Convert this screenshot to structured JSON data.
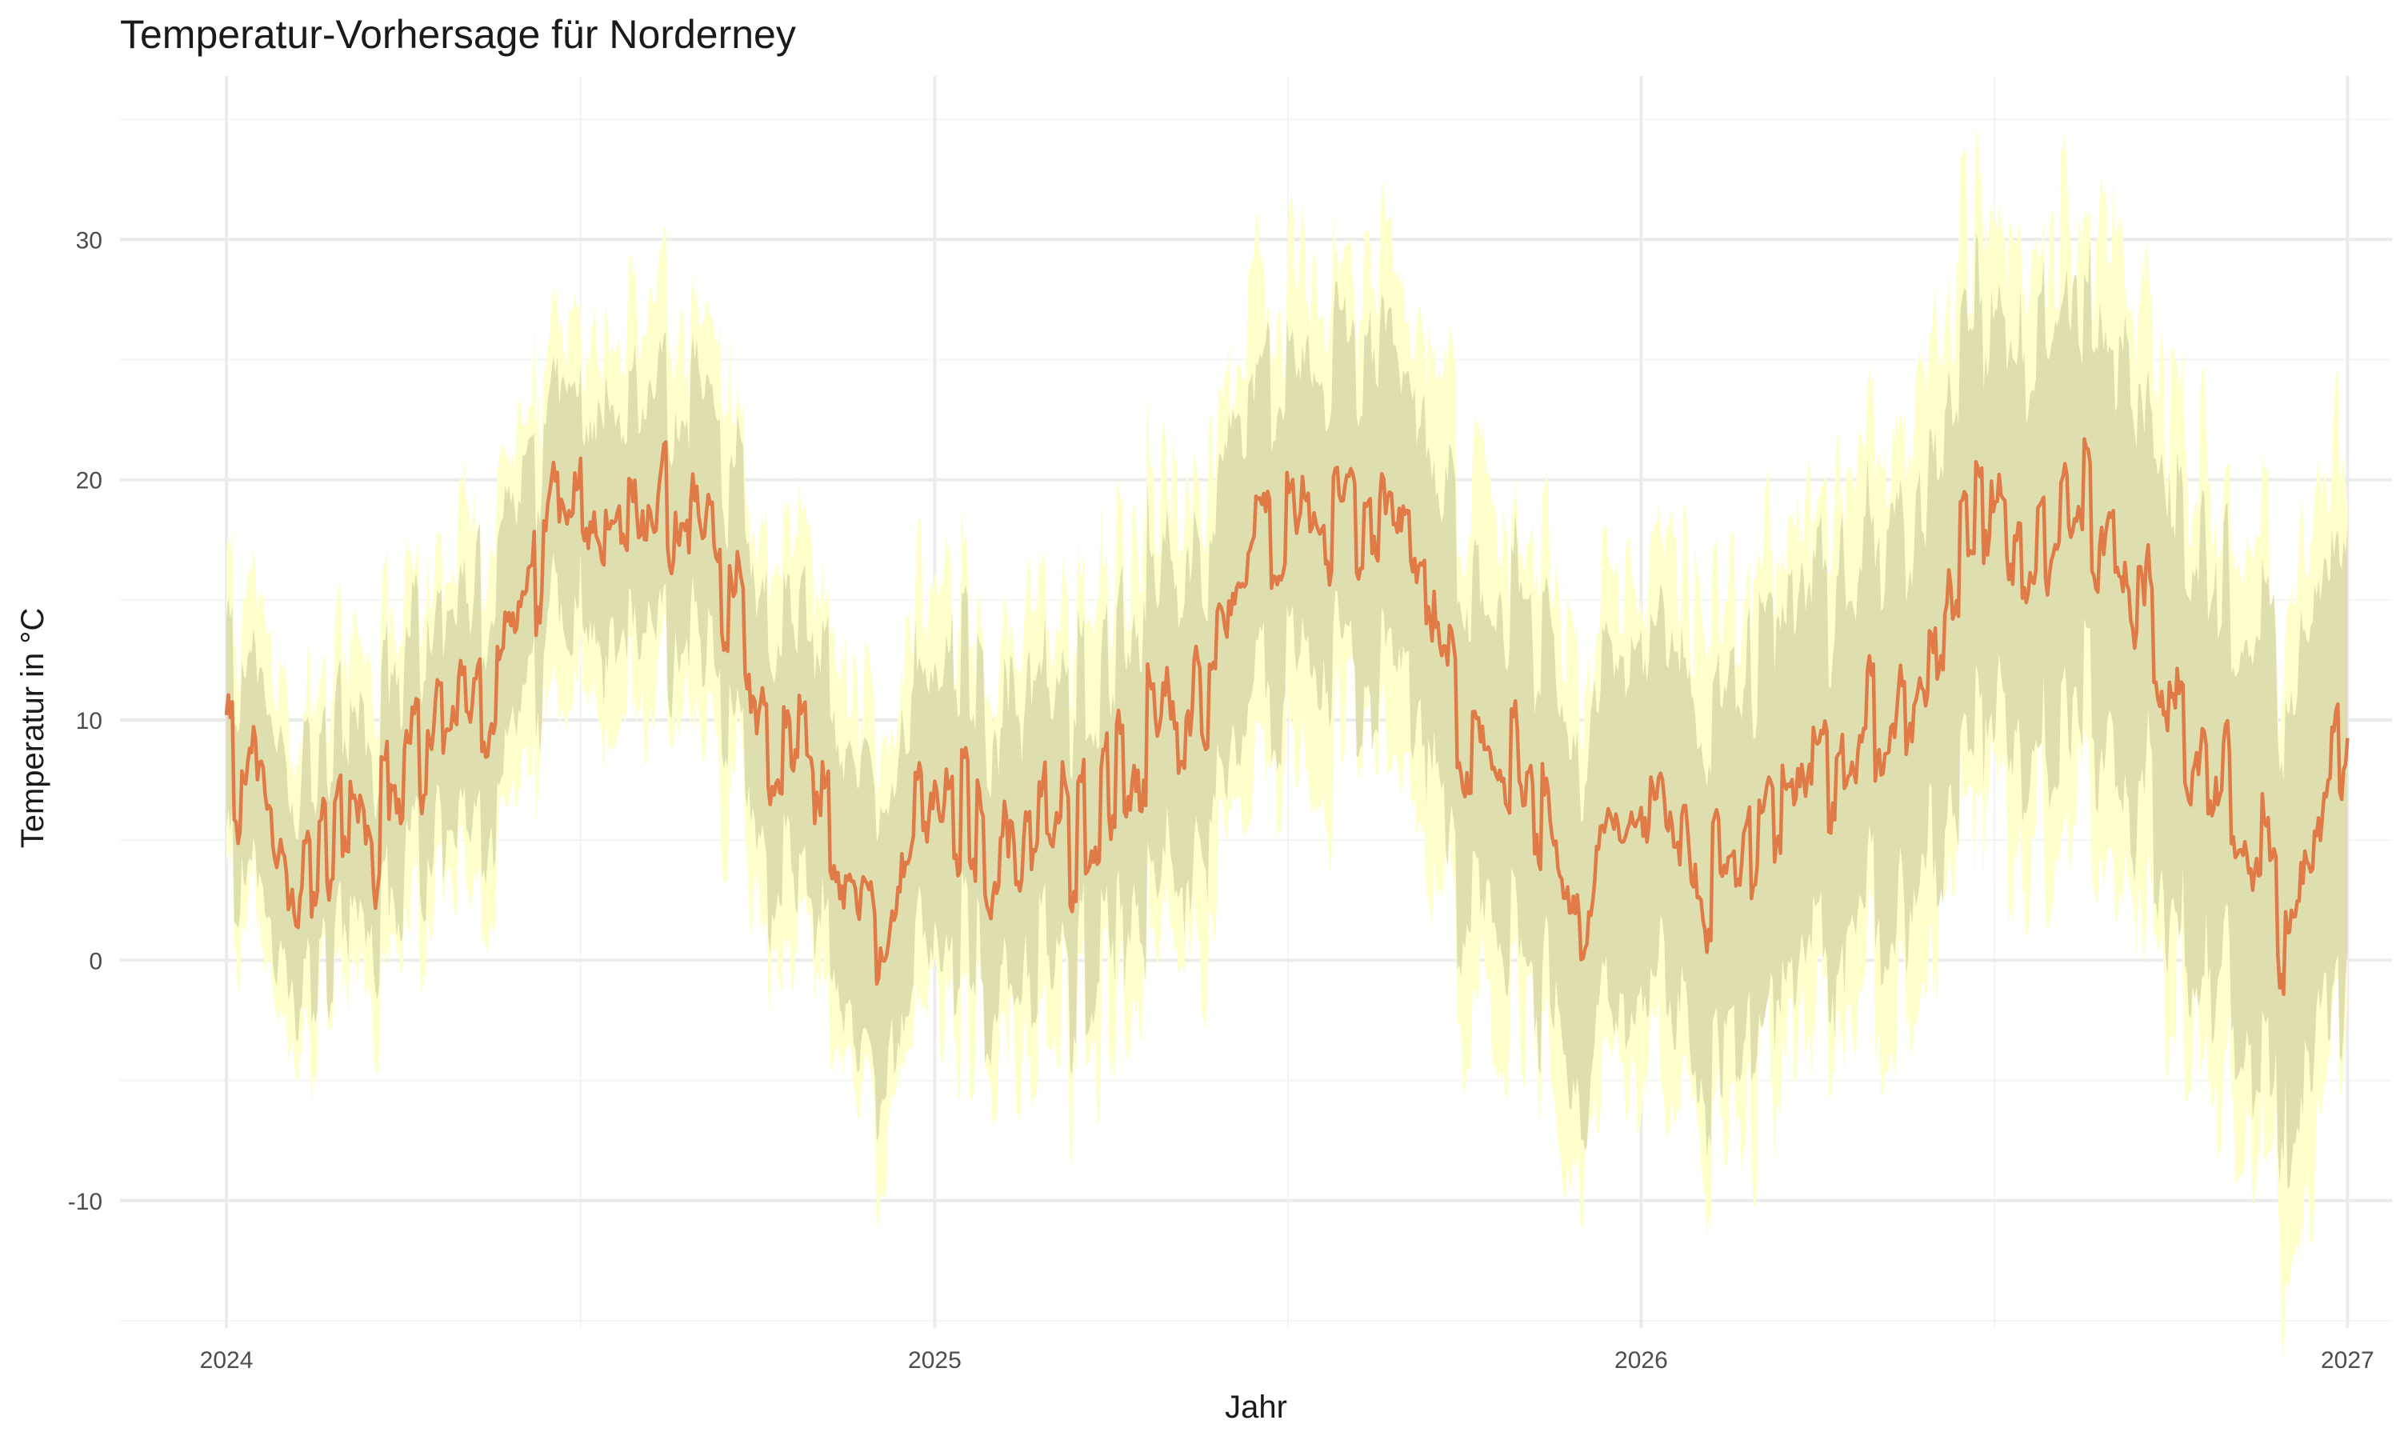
{
  "chart_data": {
    "type": "line",
    "title": "Temperatur-Vorhersage für Norderney",
    "xlabel": "Jahr",
    "ylabel": "Temperatur in °C",
    "x_ticks": [
      "2024",
      "2025",
      "2026",
      "2027"
    ],
    "y_ticks": [
      "-10",
      "0",
      "10",
      "20",
      "30"
    ],
    "xlim": [
      "2023-11-07",
      "2027-01-24"
    ],
    "ylim": [
      -15.3,
      36.8
    ],
    "x_range": [
      "2024-01-01",
      "2027-01-01"
    ],
    "grid": true,
    "legend": "none",
    "colors": {
      "line": "#e07a46",
      "band_outer": "#ffffcc",
      "band_inner": "#d8d8a8",
      "grid_major": "#ebebeb",
      "grid_minor": "#f4f4f4"
    },
    "series": [
      {
        "kind": "line",
        "description": "daily forecast mean, anchor values (°C) at roughly half-monthly intervals",
        "anchors": [
          [
            "2024-01-01",
            8.2
          ],
          [
            "2024-01-15",
            6.5
          ],
          [
            "2024-02-01",
            2.5
          ],
          [
            "2024-02-15",
            4.5
          ],
          [
            "2024-03-01",
            6.0
          ],
          [
            "2024-03-15",
            5.0
          ],
          [
            "2024-04-01",
            7.5
          ],
          [
            "2024-04-15",
            8.5
          ],
          [
            "2024-05-01",
            10.0
          ],
          [
            "2024-05-15",
            11.5
          ],
          [
            "2024-06-01",
            12.5
          ],
          [
            "2024-06-15",
            17.5
          ],
          [
            "2024-07-01",
            18.5
          ],
          [
            "2024-07-15",
            17.0
          ],
          [
            "2024-08-01",
            18.0
          ],
          [
            "2024-08-15",
            19.5
          ],
          [
            "2024-09-01",
            17.0
          ],
          [
            "2024-09-15",
            16.0
          ],
          [
            "2024-10-01",
            10.0
          ],
          [
            "2024-10-15",
            9.0
          ],
          [
            "2024-11-01",
            8.0
          ],
          [
            "2024-11-15",
            5.0
          ],
          [
            "2024-12-01",
            0.5
          ],
          [
            "2024-12-15",
            6.0
          ],
          [
            "2025-01-01",
            8.0
          ],
          [
            "2025-01-15",
            6.5
          ],
          [
            "2025-02-01",
            2.5
          ],
          [
            "2025-02-15",
            4.5
          ],
          [
            "2025-03-01",
            6.0
          ],
          [
            "2025-03-15",
            5.0
          ],
          [
            "2025-04-01",
            7.5
          ],
          [
            "2025-04-15",
            8.5
          ],
          [
            "2025-05-01",
            10.0
          ],
          [
            "2025-05-15",
            11.5
          ],
          [
            "2025-06-01",
            12.5
          ],
          [
            "2025-06-15",
            17.5
          ],
          [
            "2025-07-01",
            18.5
          ],
          [
            "2025-07-15",
            17.0
          ],
          [
            "2025-08-01",
            18.0
          ],
          [
            "2025-08-15",
            19.5
          ],
          [
            "2025-09-01",
            17.0
          ],
          [
            "2025-09-15",
            16.0
          ],
          [
            "2025-10-01",
            10.0
          ],
          [
            "2025-10-15",
            9.0
          ],
          [
            "2025-11-01",
            8.0
          ],
          [
            "2025-11-15",
            5.0
          ],
          [
            "2025-12-01",
            0.5
          ],
          [
            "2025-12-15",
            6.0
          ],
          [
            "2026-01-01",
            8.0
          ],
          [
            "2026-01-15",
            6.5
          ],
          [
            "2026-02-01",
            2.5
          ],
          [
            "2026-02-15",
            4.5
          ],
          [
            "2026-03-01",
            6.0
          ],
          [
            "2026-03-15",
            5.0
          ],
          [
            "2026-04-01",
            7.5
          ],
          [
            "2026-04-15",
            8.5
          ],
          [
            "2026-05-01",
            10.0
          ],
          [
            "2026-05-15",
            11.5
          ],
          [
            "2026-06-01",
            12.5
          ],
          [
            "2026-06-15",
            17.5
          ],
          [
            "2026-07-01",
            18.5
          ],
          [
            "2026-07-15",
            17.0
          ],
          [
            "2026-08-01",
            18.0
          ],
          [
            "2026-08-15",
            19.5
          ],
          [
            "2026-09-01",
            17.0
          ],
          [
            "2026-09-15",
            16.0
          ],
          [
            "2026-10-01",
            10.0
          ],
          [
            "2026-10-15",
            9.0
          ],
          [
            "2026-11-01",
            8.0
          ],
          [
            "2026-11-15",
            5.0
          ],
          [
            "2026-12-01",
            0.5
          ],
          [
            "2026-12-15",
            6.0
          ],
          [
            "2027-01-01",
            8.2
          ]
        ]
      },
      {
        "kind": "band",
        "description": "inner (darker) uncertainty band, half-width in °C growing over time",
        "half_width_start": 4.0,
        "half_width_end": 9.0
      },
      {
        "kind": "band",
        "description": "outer (light yellow) uncertainty band, half-width in °C growing over time",
        "half_width_start": 6.5,
        "half_width_end": 13.0
      }
    ]
  }
}
